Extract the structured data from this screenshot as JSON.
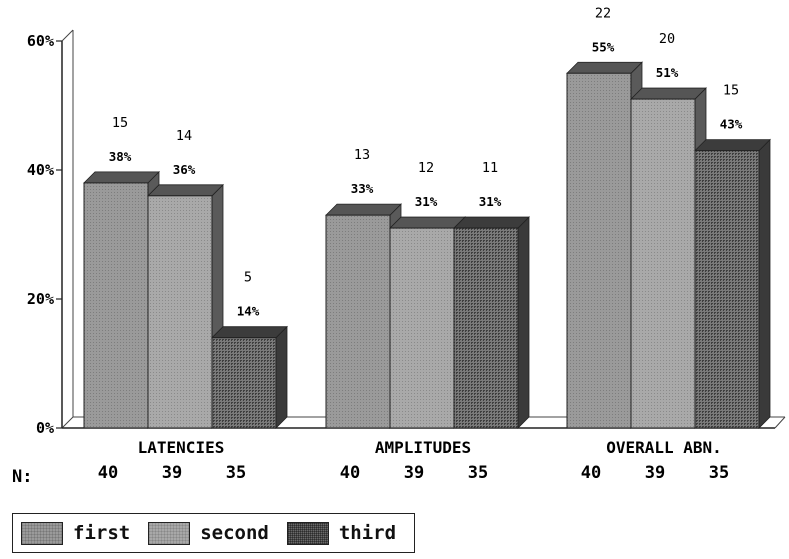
{
  "chart_data": {
    "type": "bar",
    "categories": [
      "LATENCIES",
      "AMPLITUDES",
      "OVERALL ABN."
    ],
    "series": [
      {
        "name": "first",
        "values": [
          38,
          33,
          55
        ],
        "counts": [
          "15",
          "13",
          "22"
        ],
        "labels": [
          "38%",
          "33%",
          "55%"
        ],
        "n": [
          "40",
          "40",
          "40"
        ]
      },
      {
        "name": "second",
        "values": [
          36,
          31,
          51
        ],
        "counts": [
          "14",
          "12",
          "20"
        ],
        "labels": [
          "36%",
          "31%",
          "51%"
        ],
        "n": [
          "39",
          "39",
          "39"
        ]
      },
      {
        "name": "third",
        "values": [
          14,
          31,
          43
        ],
        "counts": [
          "5",
          "11",
          "15"
        ],
        "labels": [
          "14%",
          "31%",
          "43%"
        ],
        "n": [
          "35",
          "35",
          "35"
        ]
      }
    ],
    "yticks": [
      "0%",
      "20%",
      "40%",
      "60%"
    ],
    "ylim": [
      0,
      60
    ],
    "n_label": "N:",
    "grid": false,
    "legend_position": "bottom-left"
  },
  "colors": {
    "first": "#9a9a9a",
    "second": "#a8a8a8",
    "third": "#6a6a6a"
  }
}
